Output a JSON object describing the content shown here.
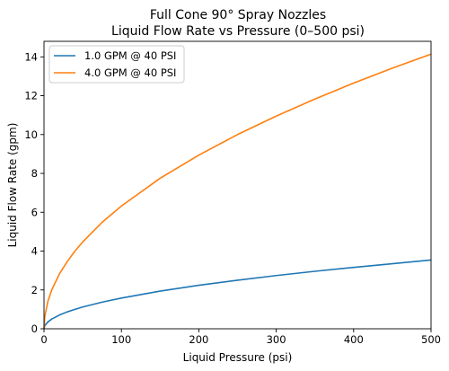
{
  "chart_data": {
    "type": "line",
    "title": "Full Cone 90° Spray Nozzles",
    "subtitle": "Liquid Flow Rate vs Pressure (0–500 psi)",
    "xlabel": "Liquid Pressure (psi)",
    "ylabel": "Liquid Flow Rate (gpm)",
    "xlim": [
      0,
      500
    ],
    "ylim": [
      0,
      14.8
    ],
    "xticks": [
      0,
      100,
      200,
      300,
      400,
      500
    ],
    "yticks": [
      0,
      2,
      4,
      6,
      8,
      10,
      12,
      14
    ],
    "grid": false,
    "legend_position": "top-left",
    "series": [
      {
        "name": "1.0 GPM @ 40 PSI",
        "color": "#1f77b4",
        "x": [
          0,
          1,
          5,
          10,
          20,
          30,
          40,
          50,
          75,
          100,
          150,
          200,
          250,
          300,
          350,
          400,
          450,
          500
        ],
        "values": [
          0,
          0.16,
          0.35,
          0.5,
          0.71,
          0.87,
          1.0,
          1.12,
          1.37,
          1.58,
          1.94,
          2.24,
          2.5,
          2.74,
          2.96,
          3.16,
          3.35,
          3.54
        ]
      },
      {
        "name": "4.0 GPM @ 40 PSI",
        "color": "#ff7f0e",
        "x": [
          0,
          1,
          5,
          10,
          20,
          30,
          40,
          50,
          75,
          100,
          150,
          200,
          250,
          300,
          350,
          400,
          450,
          500
        ],
        "values": [
          0,
          0.63,
          1.41,
          2.0,
          2.83,
          3.46,
          4.0,
          4.47,
          5.48,
          6.32,
          7.75,
          8.94,
          10.0,
          10.95,
          11.83,
          12.65,
          13.42,
          14.14
        ]
      }
    ]
  }
}
